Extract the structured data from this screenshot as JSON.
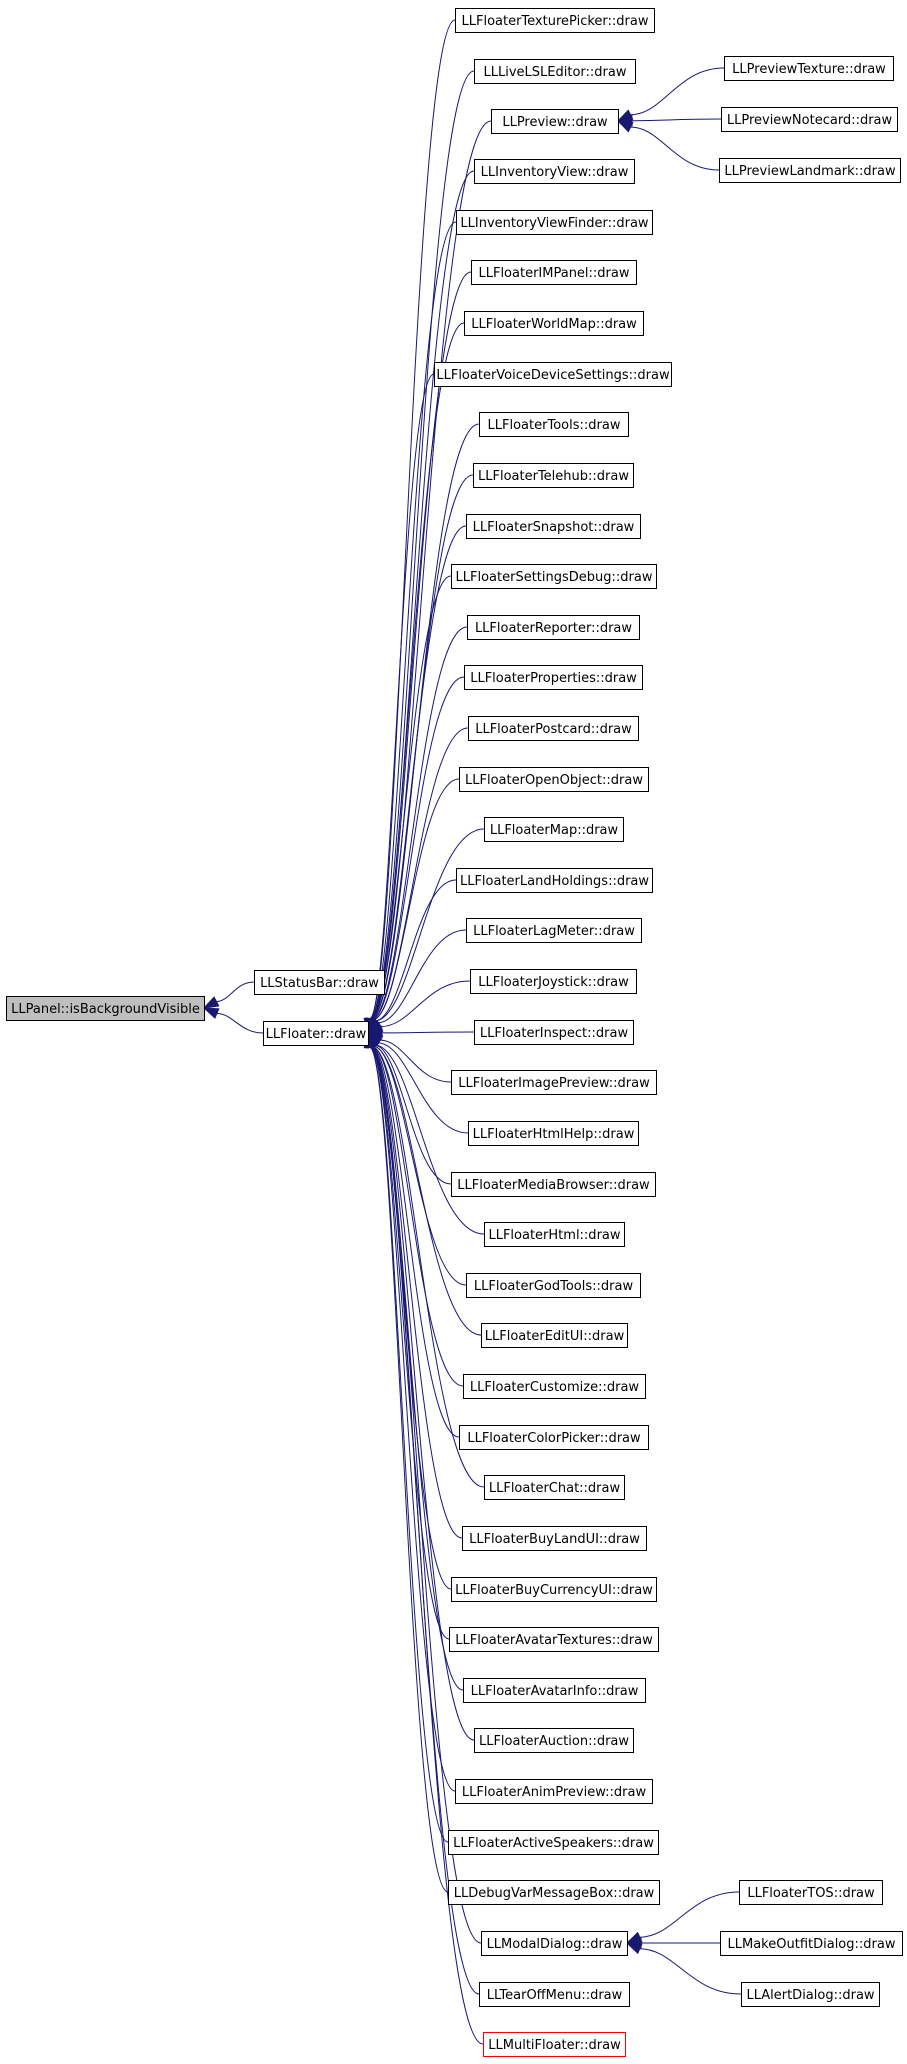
{
  "diagram": {
    "colors": {
      "edge": "#191970",
      "box_stroke": "#000000",
      "root_fill": "#bfbfbf",
      "highlight_stroke": "#ff0000",
      "background": "#ffffff"
    },
    "nodes": [
      {
        "id": "panel",
        "label": "LLPanel::isBackgroundVisible",
        "role": "root"
      },
      {
        "id": "statusbar",
        "label": "LLStatusBar::draw"
      },
      {
        "id": "floater",
        "label": "LLFloater::draw"
      },
      {
        "id": "texturepicker",
        "label": "LLFloaterTexturePicker::draw"
      },
      {
        "id": "livelsl",
        "label": "LLLiveLSLEditor::draw"
      },
      {
        "id": "preview",
        "label": "LLPreview::draw"
      },
      {
        "id": "previewtexture",
        "label": "LLPreviewTexture::draw"
      },
      {
        "id": "previewnotecard",
        "label": "LLPreviewNotecard::draw"
      },
      {
        "id": "previewlandmark",
        "label": "LLPreviewLandmark::draw"
      },
      {
        "id": "inventoryview",
        "label": "LLInventoryView::draw"
      },
      {
        "id": "inventoryviewfinder",
        "label": "LLInventoryViewFinder::draw"
      },
      {
        "id": "impanel",
        "label": "LLFloaterIMPanel::draw"
      },
      {
        "id": "worldmap",
        "label": "LLFloaterWorldMap::draw"
      },
      {
        "id": "voicedevice",
        "label": "LLFloaterVoiceDeviceSettings::draw"
      },
      {
        "id": "tools",
        "label": "LLFloaterTools::draw"
      },
      {
        "id": "telehub",
        "label": "LLFloaterTelehub::draw"
      },
      {
        "id": "snapshot",
        "label": "LLFloaterSnapshot::draw"
      },
      {
        "id": "settingsdebug",
        "label": "LLFloaterSettingsDebug::draw"
      },
      {
        "id": "reporter",
        "label": "LLFloaterReporter::draw"
      },
      {
        "id": "properties",
        "label": "LLFloaterProperties::draw"
      },
      {
        "id": "postcard",
        "label": "LLFloaterPostcard::draw"
      },
      {
        "id": "openobject",
        "label": "LLFloaterOpenObject::draw"
      },
      {
        "id": "map",
        "label": "LLFloaterMap::draw"
      },
      {
        "id": "landholdings",
        "label": "LLFloaterLandHoldings::draw"
      },
      {
        "id": "lagmeter",
        "label": "LLFloaterLagMeter::draw"
      },
      {
        "id": "joystick",
        "label": "LLFloaterJoystick::draw"
      },
      {
        "id": "inspect",
        "label": "LLFloaterInspect::draw"
      },
      {
        "id": "imagepreview",
        "label": "LLFloaterImagePreview::draw"
      },
      {
        "id": "htmlhelp",
        "label": "LLFloaterHtmlHelp::draw"
      },
      {
        "id": "mediabrowser",
        "label": "LLFloaterMediaBrowser::draw"
      },
      {
        "id": "html",
        "label": "LLFloaterHtml::draw"
      },
      {
        "id": "godtools",
        "label": "LLFloaterGodTools::draw"
      },
      {
        "id": "editui",
        "label": "LLFloaterEditUI::draw"
      },
      {
        "id": "customize",
        "label": "LLFloaterCustomize::draw"
      },
      {
        "id": "colorpicker",
        "label": "LLFloaterColorPicker::draw"
      },
      {
        "id": "chat",
        "label": "LLFloaterChat::draw"
      },
      {
        "id": "buylandui",
        "label": "LLFloaterBuyLandUI::draw"
      },
      {
        "id": "buycurrencyui",
        "label": "LLFloaterBuyCurrencyUI::draw"
      },
      {
        "id": "avatartextures",
        "label": "LLFloaterAvatarTextures::draw"
      },
      {
        "id": "avatarinfo",
        "label": "LLFloaterAvatarInfo::draw"
      },
      {
        "id": "auction",
        "label": "LLFloaterAuction::draw"
      },
      {
        "id": "animpreview",
        "label": "LLFloaterAnimPreview::draw"
      },
      {
        "id": "activespeakers",
        "label": "LLFloaterActiveSpeakers::draw"
      },
      {
        "id": "debugvar",
        "label": "LLDebugVarMessageBox::draw"
      },
      {
        "id": "modaldialog",
        "label": "LLModalDialog::draw"
      },
      {
        "id": "floatertos",
        "label": "LLFloaterTOS::draw"
      },
      {
        "id": "makeoutfit",
        "label": "LLMakeOutfitDialog::draw"
      },
      {
        "id": "alertdialog",
        "label": "LLAlertDialog::draw"
      },
      {
        "id": "tearoff",
        "label": "LLTearOffMenu::draw"
      },
      {
        "id": "multifloater",
        "label": "LLMultiFloater::draw",
        "role": "highlight"
      }
    ],
    "edges": [
      {
        "from": "statusbar",
        "to": "panel"
      },
      {
        "from": "floater",
        "to": "panel"
      },
      {
        "from": "texturepicker",
        "to": "floater"
      },
      {
        "from": "livelsl",
        "to": "floater"
      },
      {
        "from": "preview",
        "to": "floater"
      },
      {
        "from": "inventoryview",
        "to": "floater"
      },
      {
        "from": "inventoryviewfinder",
        "to": "floater"
      },
      {
        "from": "impanel",
        "to": "floater"
      },
      {
        "from": "worldmap",
        "to": "floater"
      },
      {
        "from": "voicedevice",
        "to": "floater"
      },
      {
        "from": "tools",
        "to": "floater"
      },
      {
        "from": "telehub",
        "to": "floater"
      },
      {
        "from": "snapshot",
        "to": "floater"
      },
      {
        "from": "settingsdebug",
        "to": "floater"
      },
      {
        "from": "reporter",
        "to": "floater"
      },
      {
        "from": "properties",
        "to": "floater"
      },
      {
        "from": "postcard",
        "to": "floater"
      },
      {
        "from": "openobject",
        "to": "floater"
      },
      {
        "from": "map",
        "to": "floater"
      },
      {
        "from": "landholdings",
        "to": "floater"
      },
      {
        "from": "lagmeter",
        "to": "floater"
      },
      {
        "from": "joystick",
        "to": "floater"
      },
      {
        "from": "inspect",
        "to": "floater"
      },
      {
        "from": "imagepreview",
        "to": "floater"
      },
      {
        "from": "htmlhelp",
        "to": "floater"
      },
      {
        "from": "mediabrowser",
        "to": "floater"
      },
      {
        "from": "html",
        "to": "floater"
      },
      {
        "from": "godtools",
        "to": "floater"
      },
      {
        "from": "editui",
        "to": "floater"
      },
      {
        "from": "customize",
        "to": "floater"
      },
      {
        "from": "colorpicker",
        "to": "floater"
      },
      {
        "from": "chat",
        "to": "floater"
      },
      {
        "from": "buylandui",
        "to": "floater"
      },
      {
        "from": "buycurrencyui",
        "to": "floater"
      },
      {
        "from": "avatartextures",
        "to": "floater"
      },
      {
        "from": "avatarinfo",
        "to": "floater"
      },
      {
        "from": "auction",
        "to": "floater"
      },
      {
        "from": "animpreview",
        "to": "floater"
      },
      {
        "from": "activespeakers",
        "to": "floater"
      },
      {
        "from": "debugvar",
        "to": "floater"
      },
      {
        "from": "modaldialog",
        "to": "floater"
      },
      {
        "from": "tearoff",
        "to": "floater"
      },
      {
        "from": "multifloater",
        "to": "floater"
      },
      {
        "from": "previewtexture",
        "to": "preview"
      },
      {
        "from": "previewnotecard",
        "to": "preview"
      },
      {
        "from": "previewlandmark",
        "to": "preview"
      },
      {
        "from": "floatertos",
        "to": "modaldialog"
      },
      {
        "from": "makeoutfit",
        "to": "modaldialog"
      },
      {
        "from": "alertdialog",
        "to": "modaldialog"
      }
    ]
  }
}
